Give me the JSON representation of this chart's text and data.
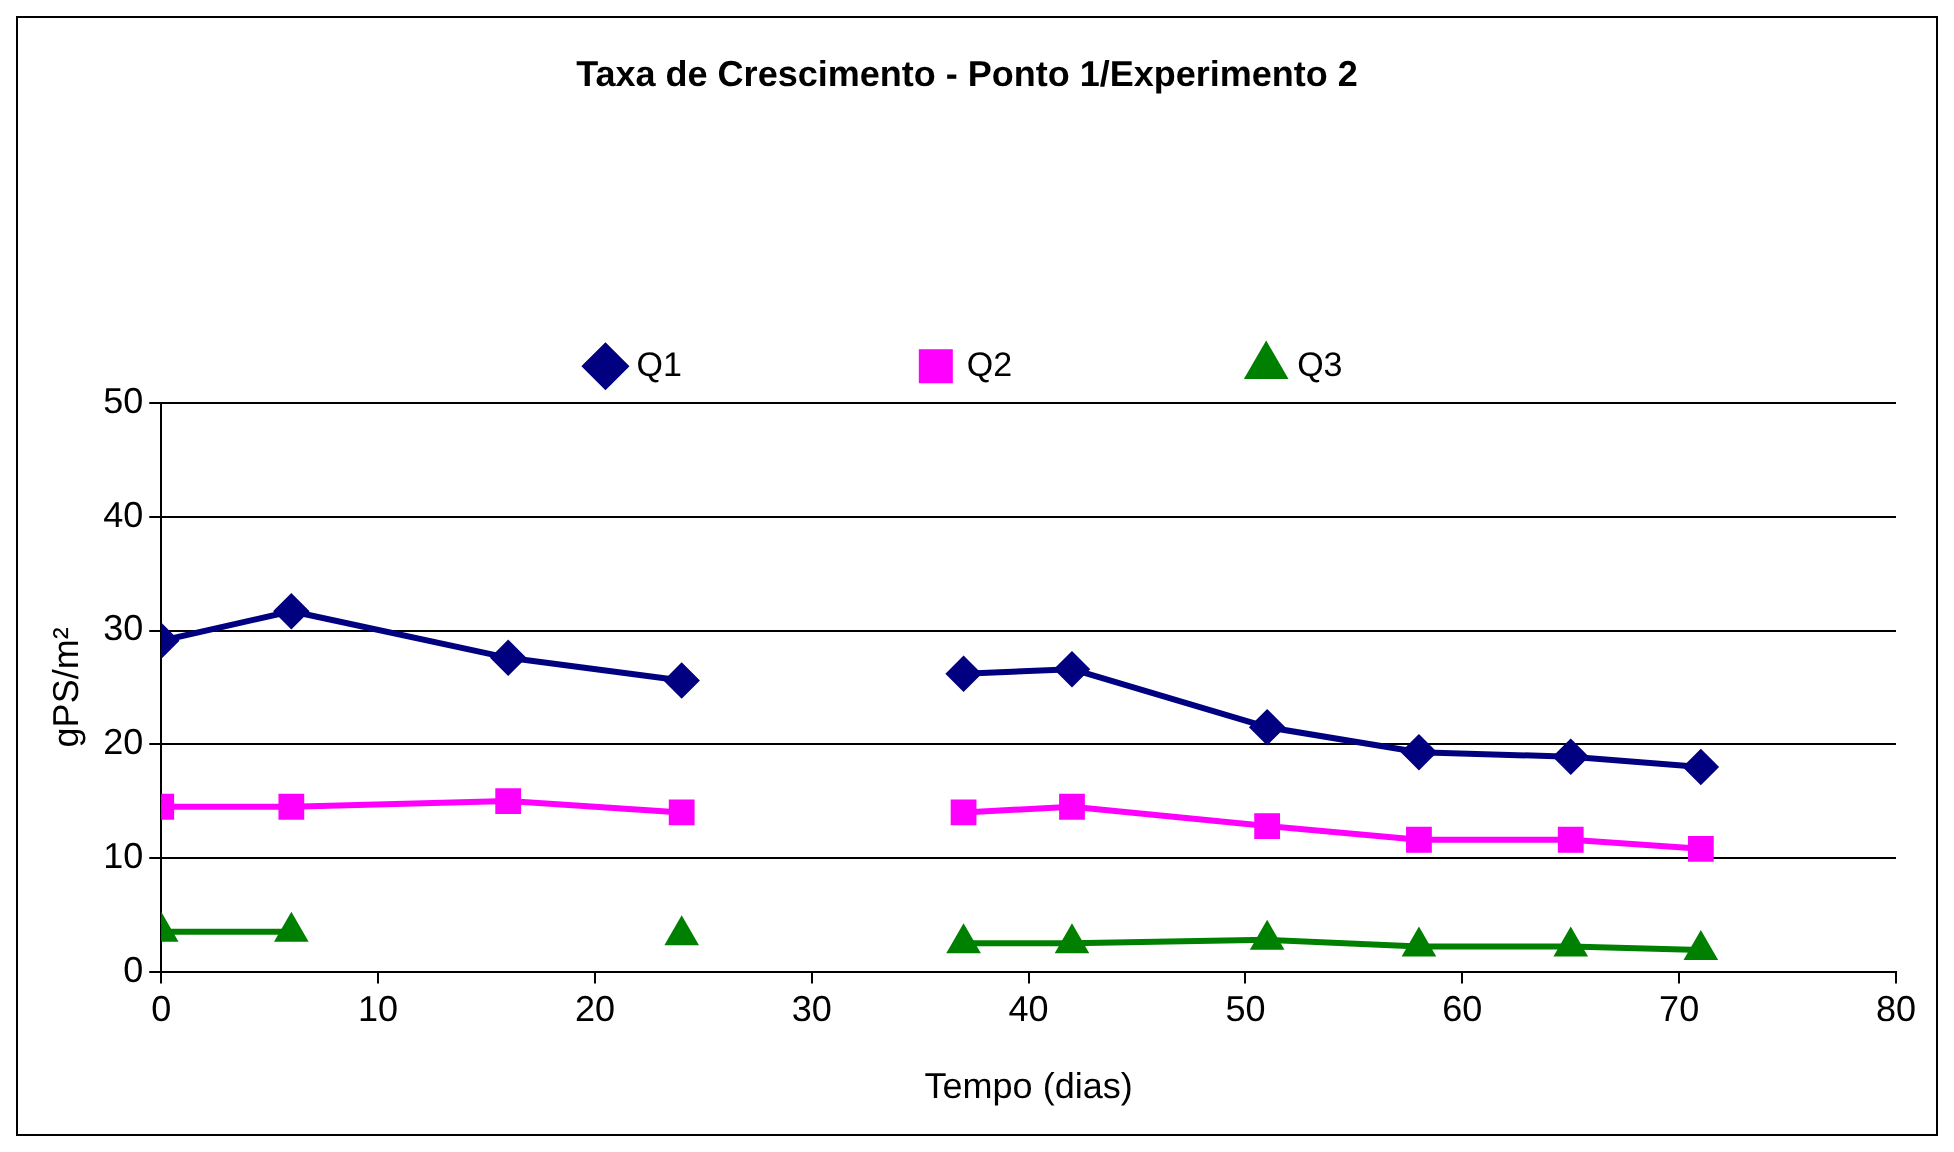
{
  "chart_data": {
    "type": "line",
    "title": "Taxa de Crescimento - Ponto 1/Experimento 2",
    "xlabel": "Tempo (dias)",
    "ylabel": "gPS/m²",
    "x": [
      0,
      6,
      16,
      24,
      30,
      37,
      42,
      51,
      58,
      65,
      71
    ],
    "series": [
      {
        "name": "Q1",
        "color": "#000080",
        "marker": "diamond",
        "values": [
          29.1,
          31.7,
          27.6,
          25.6,
          null,
          26.2,
          26.6,
          21.5,
          19.3,
          18.9,
          18.0
        ]
      },
      {
        "name": "Q2",
        "color": "#ff00ff",
        "marker": "square",
        "values": [
          14.5,
          14.5,
          15.0,
          14.0,
          null,
          14.0,
          14.5,
          12.8,
          11.6,
          11.6,
          10.8
        ]
      },
      {
        "name": "Q3",
        "color": "#008000",
        "marker": "triangle",
        "values": [
          3.5,
          3.5,
          null,
          3.2,
          null,
          2.5,
          2.5,
          2.8,
          2.2,
          2.2,
          1.9
        ]
      }
    ],
    "xlim": [
      0,
      80
    ],
    "xticks": [
      0,
      10,
      20,
      30,
      40,
      50,
      60,
      70,
      80
    ],
    "ylim": [
      0,
      50
    ],
    "yticks": [
      0,
      10,
      20,
      30,
      40,
      50
    ],
    "grid": "y",
    "legend": "top",
    "line_style": "solid"
  }
}
